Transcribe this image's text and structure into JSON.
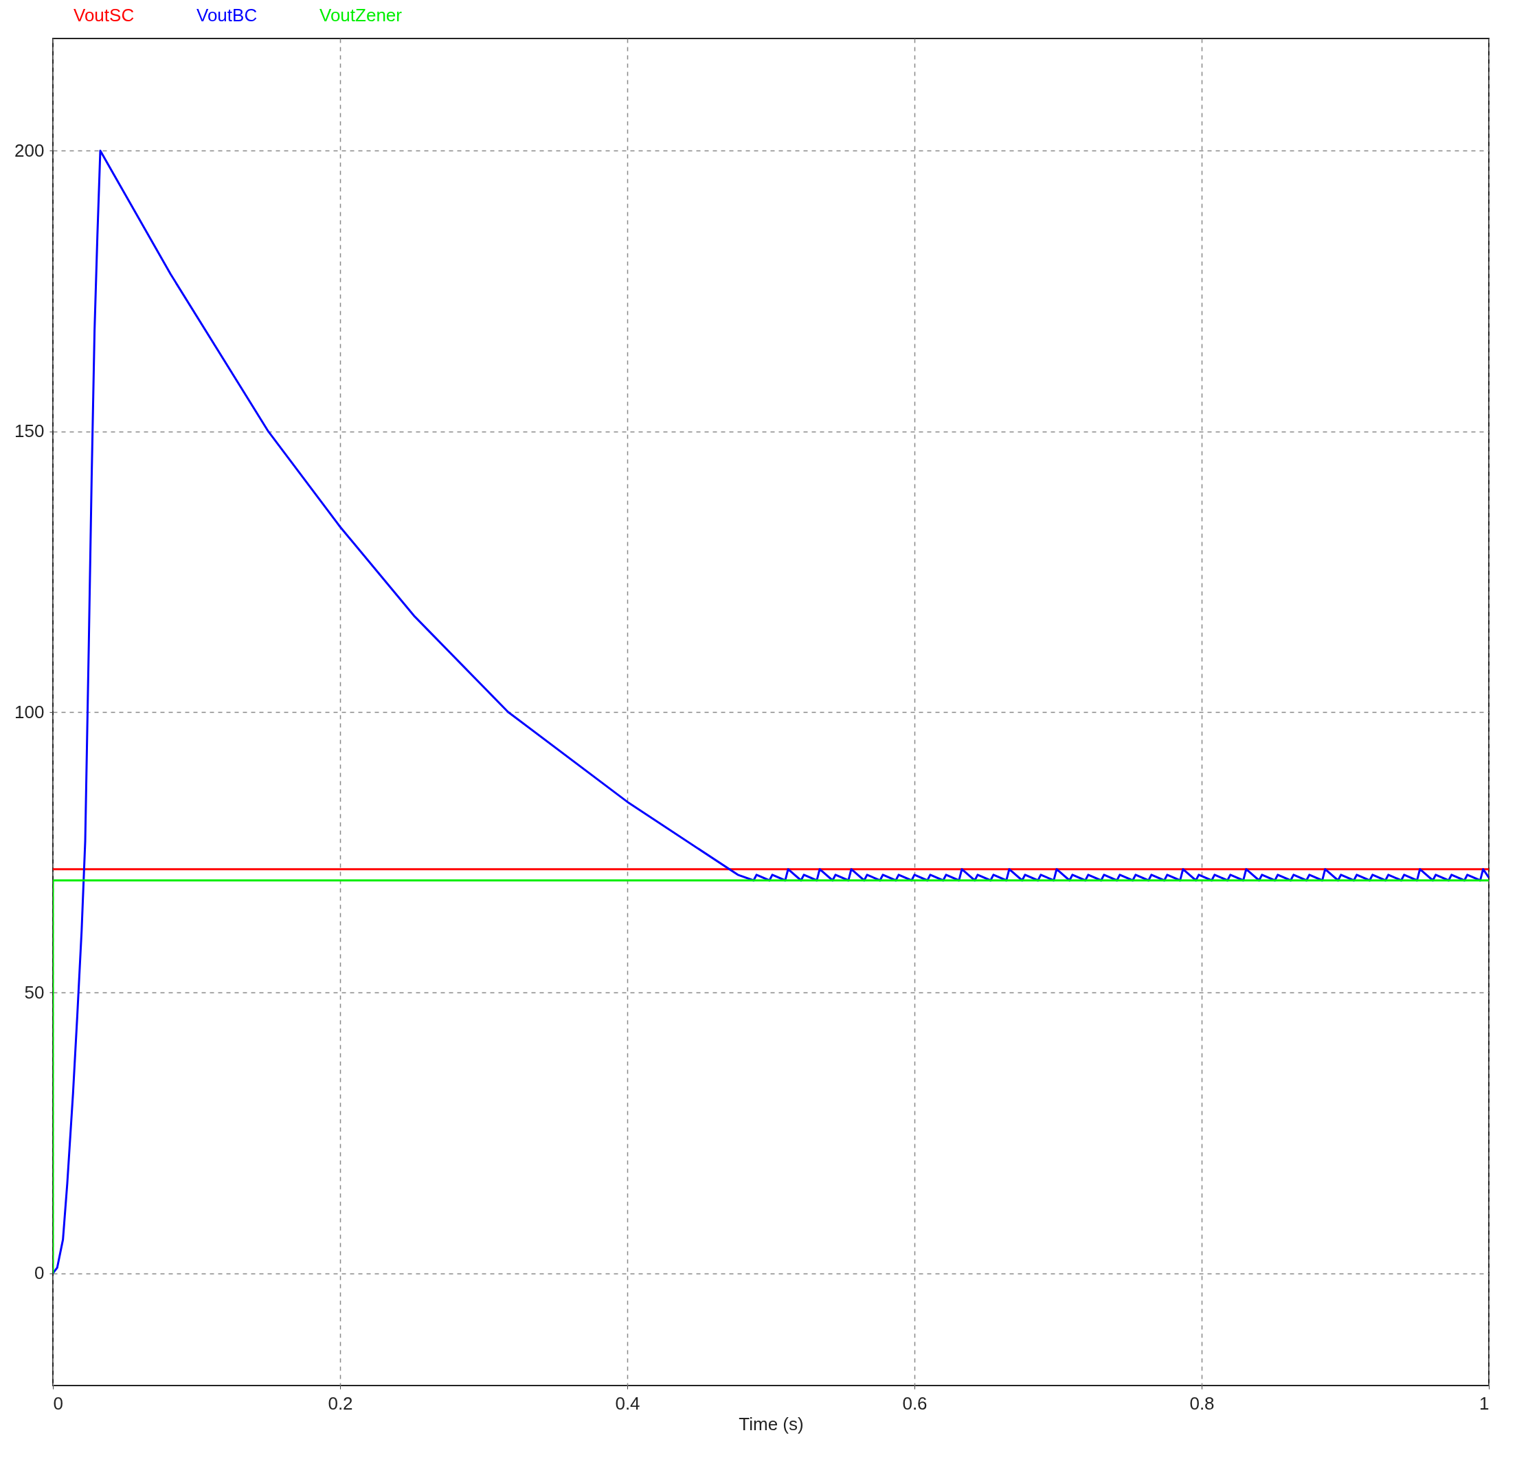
{
  "chart_data": {
    "type": "line",
    "xlabel": "Time (s)",
    "xlim": [
      0,
      1
    ],
    "ylim": [
      -20,
      220
    ],
    "xticks": [
      0,
      0.2,
      0.4,
      0.6,
      0.8,
      1
    ],
    "yticks": [
      0,
      50,
      100,
      150,
      200
    ],
    "grid": true,
    "legend": "top left",
    "line_style": "solid",
    "marker": "none",
    "series": [
      {
        "name": "VoutSC",
        "color": "#ff0000",
        "x": [
          0,
          1
        ],
        "values": [
          72,
          72
        ]
      },
      {
        "name": "VoutBC",
        "color": "#0000ff",
        "x": [
          0,
          0.003,
          0.007,
          0.01,
          0.014,
          0.017,
          0.02,
          0.0225,
          0.025,
          0.027,
          0.029,
          0.031,
          0.033,
          0.082,
          0.15,
          0.2,
          0.252,
          0.317,
          0.4,
          0.477,
          0.488,
          0.49,
          0.499,
          0.501,
          0.51,
          0.512,
          0.521,
          0.523,
          0.532,
          0.534,
          0.543,
          0.545,
          0.554,
          0.556,
          0.565,
          0.567,
          0.576,
          0.578,
          0.587,
          0.589,
          0.598,
          0.6,
          0.609,
          0.611,
          0.62,
          0.622,
          0.631,
          0.633,
          0.642,
          0.644,
          0.653,
          0.655,
          0.664,
          0.666,
          0.675,
          0.677,
          0.686,
          0.688,
          0.697,
          0.699,
          0.708,
          0.71,
          0.719,
          0.721,
          0.73,
          0.732,
          0.741,
          0.743,
          0.752,
          0.754,
          0.763,
          0.765,
          0.774,
          0.776,
          0.785,
          0.787,
          0.796,
          0.798,
          0.807,
          0.809,
          0.818,
          0.82,
          0.829,
          0.831,
          0.84,
          0.842,
          0.851,
          0.853,
          0.862,
          0.864,
          0.873,
          0.875,
          0.884,
          0.886,
          0.895,
          0.897,
          0.906,
          0.908,
          0.917,
          0.919,
          0.928,
          0.93,
          0.939,
          0.941,
          0.95,
          0.952,
          0.961,
          0.963,
          0.972,
          0.974,
          0.983,
          0.985,
          0.994,
          0.996,
          1
        ],
        "values": [
          0,
          1,
          6,
          16,
          32,
          46,
          61,
          77,
          112,
          142,
          168,
          185,
          200,
          178,
          150,
          133,
          117,
          100,
          84,
          71,
          70,
          71,
          70,
          71,
          70,
          72,
          70,
          71,
          70,
          72,
          70,
          71,
          70,
          72,
          70,
          71,
          70,
          71,
          70,
          71,
          70,
          71,
          70,
          71,
          70,
          71,
          70,
          72,
          70,
          71,
          70,
          71,
          70,
          72,
          70,
          71,
          70,
          71,
          70,
          72,
          70,
          71,
          70,
          71,
          70,
          71,
          70,
          71,
          70,
          71,
          70,
          71,
          70,
          71,
          70,
          72,
          70,
          71,
          70,
          71,
          70,
          71,
          70,
          72,
          70,
          71,
          70,
          71,
          70,
          71,
          70,
          71,
          70,
          72,
          70,
          71,
          70,
          71,
          70,
          71,
          70,
          71,
          70,
          71,
          70,
          72,
          70,
          71,
          70,
          71,
          70,
          71,
          70,
          72,
          70.5
        ]
      },
      {
        "name": "VoutZener",
        "color": "#00ee00",
        "x": [
          0,
          0,
          1
        ],
        "values": [
          0,
          70,
          70
        ]
      }
    ]
  }
}
